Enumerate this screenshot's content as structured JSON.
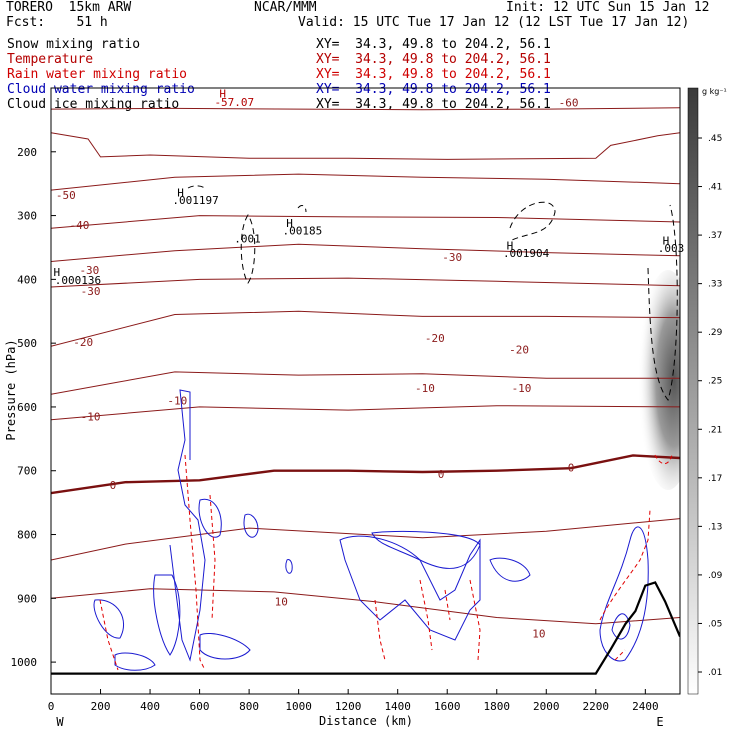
{
  "header": {
    "model": "TORERO  15km ARW",
    "center": "NCAR/MMM",
    "init": "Init: 12 UTC Sun 15 Jan 12",
    "fcst": "Fcst:    51 h",
    "valid": "Valid: 15 UTC Tue 17 Jan 12 (12 LST Tue 17 Jan 12)"
  },
  "fields": [
    {
      "name": "Snow mixing ratio",
      "xy": "XY=  34.3, 49.8 to 204.2, 56.1",
      "color": "#000000"
    },
    {
      "name": "Temperature",
      "xy": "XY=  34.3, 49.8 to 204.2, 56.1",
      "color": "#b40000"
    },
    {
      "name": "Rain water mixing ratio",
      "xy": "XY=  34.3, 49.8 to 204.2, 56.1",
      "color": "#d00000"
    },
    {
      "name": "Cloud water mixing ratio",
      "xy": "XY=  34.3, 49.8 to 204.2, 56.1",
      "color": "#0000b4"
    },
    {
      "name": "Cloud ice mixing ratio",
      "xy": "XY=  34.3, 49.8 to 204.2, 56.1",
      "color": "#000000"
    }
  ],
  "chart_data": {
    "type": "cross-section contour",
    "xlabel": "Distance (km)",
    "ylabel": "Pressure (hPa)",
    "xlim": [
      0,
      2540
    ],
    "ylim": [
      1050,
      100
    ],
    "x_ticks": [
      0,
      200,
      400,
      600,
      800,
      1000,
      1200,
      1400,
      1600,
      1800,
      2000,
      2200,
      2400
    ],
    "y_ticks": [
      200,
      300,
      400,
      500,
      600,
      700,
      800,
      900,
      1000
    ],
    "end_labels": {
      "left": "W",
      "right": "E"
    },
    "colorbar": {
      "unit": "g kg⁻¹",
      "ticks": [
        ".45",
        ".41",
        ".37",
        ".33",
        ".29",
        ".25",
        ".21",
        ".17",
        ".13",
        ".09",
        ".05",
        ".01"
      ],
      "values": [
        0.45,
        0.41,
        0.37,
        0.33,
        0.29,
        0.25,
        0.21,
        0.17,
        0.13,
        0.09,
        0.05,
        0.01
      ]
    },
    "terrain": [
      [
        0,
        1018
      ],
      [
        400,
        1018
      ],
      [
        800,
        1018
      ],
      [
        1200,
        1018
      ],
      [
        1600,
        1018
      ],
      [
        2000,
        1018
      ],
      [
        2200,
        1018
      ],
      [
        2260,
        980
      ],
      [
        2320,
        940
      ],
      [
        2360,
        920
      ],
      [
        2400,
        880
      ],
      [
        2440,
        875
      ],
      [
        2480,
        905
      ],
      [
        2540,
        960
      ]
    ],
    "isotherms": [
      {
        "label": "-60",
        "points": [
          [
            0,
            133
          ],
          [
            500,
            132
          ],
          [
            1000,
            133
          ],
          [
            1500,
            134
          ],
          [
            2000,
            133
          ],
          [
            2540,
            131
          ]
        ],
        "labels": [
          [
            2090,
            123
          ]
        ]
      },
      {
        "label": "-50",
        "points": [
          [
            0,
            170
          ],
          [
            150,
            180
          ],
          [
            200,
            208
          ],
          [
            400,
            205
          ],
          [
            800,
            210
          ],
          [
            1200,
            210
          ],
          [
            1600,
            212
          ],
          [
            2200,
            210
          ],
          [
            2260,
            190
          ],
          [
            2450,
            175
          ],
          [
            2540,
            170
          ]
        ],
        "labels": [
          [
            60,
            268
          ]
        ]
      },
      {
        "label": "-40",
        "points": [
          [
            0,
            260
          ],
          [
            500,
            240
          ],
          [
            1000,
            235
          ],
          [
            1500,
            240
          ],
          [
            2000,
            243
          ],
          [
            2540,
            250
          ]
        ],
        "labels": [
          [
            115,
            315
          ]
        ]
      },
      {
        "label": "-40b",
        "points": [
          [
            0,
            320
          ],
          [
            600,
            300
          ],
          [
            1200,
            302
          ],
          [
            1800,
            303
          ],
          [
            2540,
            310
          ]
        ],
        "labels": []
      },
      {
        "label": "-30",
        "points": [
          [
            0,
            372
          ],
          [
            500,
            355
          ],
          [
            1000,
            345
          ],
          [
            1500,
            352
          ],
          [
            2000,
            358
          ],
          [
            2540,
            363
          ]
        ],
        "labels": [
          [
            155,
            385
          ],
          [
            1620,
            365
          ]
        ]
      },
      {
        "label": "-30b",
        "points": [
          [
            0,
            412
          ],
          [
            600,
            400
          ],
          [
            1200,
            398
          ],
          [
            1800,
            403
          ],
          [
            2540,
            410
          ]
        ],
        "labels": [
          [
            160,
            418
          ]
        ]
      },
      {
        "label": "-20",
        "points": [
          [
            0,
            505
          ],
          [
            500,
            455
          ],
          [
            1000,
            450
          ],
          [
            1500,
            458
          ],
          [
            2000,
            458
          ],
          [
            2540,
            460
          ]
        ],
        "labels": [
          [
            130,
            498
          ],
          [
            1550,
            492
          ],
          [
            1890,
            510
          ]
        ]
      },
      {
        "label": "-10",
        "points": [
          [
            0,
            580
          ],
          [
            500,
            545
          ],
          [
            1000,
            550
          ],
          [
            1500,
            548
          ],
          [
            2000,
            555
          ],
          [
            2540,
            555
          ]
        ],
        "labels": [
          [
            160,
            615
          ],
          [
            1510,
            570
          ],
          [
            1900,
            570
          ]
        ]
      },
      {
        "label": "-10b",
        "points": [
          [
            0,
            620
          ],
          [
            600,
            600
          ],
          [
            1200,
            605
          ],
          [
            1800,
            598
          ],
          [
            2540,
            600
          ]
        ],
        "labels": [
          [
            510,
            590
          ]
        ]
      },
      {
        "label": "0",
        "points": [
          [
            0,
            735
          ],
          [
            300,
            718
          ],
          [
            600,
            715
          ],
          [
            900,
            700
          ],
          [
            1200,
            700
          ],
          [
            1500,
            702
          ],
          [
            1800,
            700
          ],
          [
            2100,
            696
          ],
          [
            2350,
            676
          ],
          [
            2540,
            680
          ]
        ],
        "labels": [
          [
            250,
            722
          ],
          [
            1575,
            705
          ],
          [
            2100,
            695
          ]
        ]
      },
      {
        "label": "10",
        "points": [
          [
            0,
            840
          ],
          [
            300,
            815
          ],
          [
            800,
            790
          ],
          [
            1500,
            805
          ],
          [
            2000,
            795
          ],
          [
            2540,
            775
          ]
        ],
        "labels": [
          [
            930,
            905
          ]
        ]
      },
      {
        "label": "10b",
        "points": [
          [
            0,
            900
          ],
          [
            400,
            885
          ],
          [
            900,
            890
          ],
          [
            1300,
            905
          ],
          [
            1800,
            930
          ],
          [
            2200,
            940
          ],
          [
            2540,
            930
          ]
        ],
        "labels": [
          [
            1970,
            955
          ]
        ]
      }
    ],
    "isotherms_note": "representative reconstruction",
    "special_labels": [
      {
        "text": "H",
        "x": 680,
        "y": 115,
        "color": "#b40000"
      },
      {
        "text": "-57.07",
        "x": 660,
        "y": 128,
        "color": "#b40000"
      },
      {
        "text": "H",
        "x": 510,
        "y": 270,
        "color": "#000000"
      },
      {
        "text": ".001197",
        "x": 490,
        "y": 282,
        "color": "#000000"
      },
      {
        "text": "H",
        "x": 950,
        "y": 318,
        "color": "#000000"
      },
      {
        "text": ".00185",
        "x": 935,
        "y": 330,
        "color": "#000000"
      },
      {
        "text": "H",
        "x": 10,
        "y": 395,
        "color": "#000000"
      },
      {
        "text": ".000136",
        "x": 15,
        "y": 407,
        "color": "#000000"
      },
      {
        "text": "H",
        "x": 1840,
        "y": 353,
        "color": "#000000"
      },
      {
        "text": ".001904",
        "x": 1825,
        "y": 365,
        "color": "#000000"
      },
      {
        "text": "H",
        "x": 2470,
        "y": 345,
        "color": "#000000"
      },
      {
        "text": ".003",
        "x": 2450,
        "y": 357,
        "color": "#000000"
      },
      {
        "text": ".001",
        "x": 740,
        "y": 342,
        "color": "#000000"
      }
    ]
  }
}
